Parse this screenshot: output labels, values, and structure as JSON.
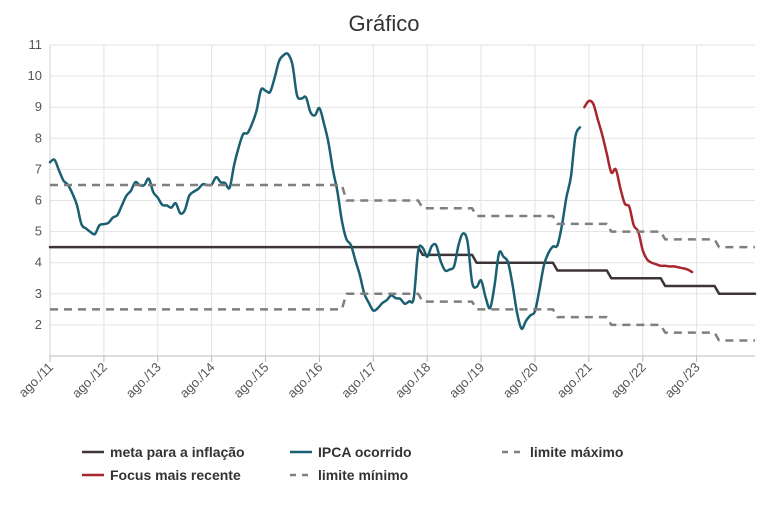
{
  "chart_data": {
    "type": "line",
    "title": "Gráfico",
    "xlabel": "",
    "ylabel": "",
    "x_range": [
      "2011-08",
      "2024-09"
    ],
    "ylim": [
      1,
      11
    ],
    "y_ticks": [
      2,
      3,
      4,
      5,
      6,
      7,
      8,
      9,
      10,
      11
    ],
    "x_tick_labels": [
      "ago./11",
      "ago./12",
      "ago./13",
      "ago./14",
      "ago./15",
      "ago./16",
      "ago./17",
      "ago./18",
      "ago./19",
      "ago./20",
      "ago./21",
      "ago./22",
      "ago./23"
    ],
    "x_tick_dates": [
      "2011-08",
      "2012-08",
      "2013-08",
      "2014-08",
      "2015-08",
      "2016-08",
      "2017-08",
      "2018-08",
      "2019-08",
      "2020-08",
      "2021-08",
      "2022-08",
      "2023-08"
    ],
    "grid": true,
    "legend_position": "bottom",
    "series": [
      {
        "name": "meta para a inflação",
        "color": "#3d3438",
        "style": "solid",
        "step": true,
        "points": [
          [
            "2011-08",
            4.5
          ],
          [
            "2017-01",
            4.5
          ],
          [
            "2018-06",
            4.5
          ],
          [
            "2018-07",
            4.25
          ],
          [
            "2019-06",
            4.25
          ],
          [
            "2019-07",
            4.0
          ],
          [
            "2020-12",
            4.0
          ],
          [
            "2021-01",
            3.75
          ],
          [
            "2021-12",
            3.75
          ],
          [
            "2022-01",
            3.5
          ],
          [
            "2022-12",
            3.5
          ],
          [
            "2023-01",
            3.25
          ],
          [
            "2023-12",
            3.25
          ],
          [
            "2024-01",
            3.0
          ],
          [
            "2024-09",
            3.0
          ]
        ]
      },
      {
        "name": "IPCA ocorrido",
        "color": "#1a5f72",
        "style": "solid",
        "step": false,
        "points": [
          [
            "2011-08",
            7.23
          ],
          [
            "2011-09",
            7.31
          ],
          [
            "2011-10",
            6.97
          ],
          [
            "2011-11",
            6.64
          ],
          [
            "2011-12",
            6.5
          ],
          [
            "2012-01",
            6.22
          ],
          [
            "2012-02",
            5.85
          ],
          [
            "2012-03",
            5.24
          ],
          [
            "2012-04",
            5.1
          ],
          [
            "2012-05",
            4.99
          ],
          [
            "2012-06",
            4.92
          ],
          [
            "2012-07",
            5.2
          ],
          [
            "2012-08",
            5.24
          ],
          [
            "2012-09",
            5.28
          ],
          [
            "2012-10",
            5.45
          ],
          [
            "2012-11",
            5.53
          ],
          [
            "2012-12",
            5.84
          ],
          [
            "2013-01",
            6.15
          ],
          [
            "2013-02",
            6.31
          ],
          [
            "2013-03",
            6.59
          ],
          [
            "2013-04",
            6.49
          ],
          [
            "2013-05",
            6.5
          ],
          [
            "2013-06",
            6.7
          ],
          [
            "2013-07",
            6.27
          ],
          [
            "2013-08",
            6.09
          ],
          [
            "2013-09",
            5.86
          ],
          [
            "2013-10",
            5.84
          ],
          [
            "2013-11",
            5.77
          ],
          [
            "2013-12",
            5.91
          ],
          [
            "2014-01",
            5.59
          ],
          [
            "2014-02",
            5.68
          ],
          [
            "2014-03",
            6.15
          ],
          [
            "2014-04",
            6.28
          ],
          [
            "2014-05",
            6.37
          ],
          [
            "2014-06",
            6.52
          ],
          [
            "2014-07",
            6.5
          ],
          [
            "2014-08",
            6.51
          ],
          [
            "2014-09",
            6.75
          ],
          [
            "2014-10",
            6.59
          ],
          [
            "2014-11",
            6.56
          ],
          [
            "2014-12",
            6.41
          ],
          [
            "2015-01",
            7.14
          ],
          [
            "2015-02",
            7.7
          ],
          [
            "2015-03",
            8.13
          ],
          [
            "2015-04",
            8.17
          ],
          [
            "2015-05",
            8.47
          ],
          [
            "2015-06",
            8.89
          ],
          [
            "2015-07",
            9.56
          ],
          [
            "2015-08",
            9.53
          ],
          [
            "2015-09",
            9.49
          ],
          [
            "2015-10",
            9.93
          ],
          [
            "2015-11",
            10.48
          ],
          [
            "2015-12",
            10.67
          ],
          [
            "2016-01",
            10.71
          ],
          [
            "2016-02",
            10.36
          ],
          [
            "2016-03",
            9.39
          ],
          [
            "2016-04",
            9.28
          ],
          [
            "2016-05",
            9.32
          ],
          [
            "2016-06",
            8.84
          ],
          [
            "2016-07",
            8.74
          ],
          [
            "2016-08",
            8.97
          ],
          [
            "2016-09",
            8.48
          ],
          [
            "2016-10",
            7.87
          ],
          [
            "2016-11",
            6.99
          ],
          [
            "2016-12",
            6.29
          ],
          [
            "2017-01",
            5.35
          ],
          [
            "2017-02",
            4.76
          ],
          [
            "2017-03",
            4.57
          ],
          [
            "2017-04",
            4.08
          ],
          [
            "2017-05",
            3.6
          ],
          [
            "2017-06",
            3.0
          ],
          [
            "2017-07",
            2.71
          ],
          [
            "2017-08",
            2.46
          ],
          [
            "2017-09",
            2.54
          ],
          [
            "2017-10",
            2.7
          ],
          [
            "2017-11",
            2.8
          ],
          [
            "2017-12",
            2.95
          ],
          [
            "2018-01",
            2.86
          ],
          [
            "2018-02",
            2.84
          ],
          [
            "2018-03",
            2.68
          ],
          [
            "2018-04",
            2.76
          ],
          [
            "2018-05",
            2.86
          ],
          [
            "2018-06",
            4.39
          ],
          [
            "2018-07",
            4.48
          ],
          [
            "2018-08",
            4.19
          ],
          [
            "2018-09",
            4.53
          ],
          [
            "2018-10",
            4.56
          ],
          [
            "2018-11",
            4.05
          ],
          [
            "2018-12",
            3.75
          ],
          [
            "2019-01",
            3.78
          ],
          [
            "2019-02",
            3.89
          ],
          [
            "2019-03",
            4.58
          ],
          [
            "2019-04",
            4.94
          ],
          [
            "2019-05",
            4.66
          ],
          [
            "2019-06",
            3.37
          ],
          [
            "2019-07",
            3.22
          ],
          [
            "2019-08",
            3.43
          ],
          [
            "2019-09",
            2.89
          ],
          [
            "2019-10",
            2.54
          ],
          [
            "2019-11",
            3.27
          ],
          [
            "2019-12",
            4.31
          ],
          [
            "2020-01",
            4.19
          ],
          [
            "2020-02",
            4.01
          ],
          [
            "2020-03",
            3.3
          ],
          [
            "2020-04",
            2.4
          ],
          [
            "2020-05",
            1.88
          ],
          [
            "2020-06",
            2.13
          ],
          [
            "2020-07",
            2.31
          ],
          [
            "2020-08",
            2.44
          ],
          [
            "2020-09",
            3.14
          ],
          [
            "2020-10",
            3.92
          ],
          [
            "2020-11",
            4.31
          ],
          [
            "2020-12",
            4.52
          ],
          [
            "2021-01",
            4.56
          ],
          [
            "2021-02",
            5.2
          ],
          [
            "2021-03",
            6.1
          ],
          [
            "2021-04",
            6.76
          ],
          [
            "2021-05",
            8.06
          ],
          [
            "2021-06",
            8.35
          ]
        ]
      },
      {
        "name": "Focus mais recente",
        "color": "#a8262d",
        "style": "solid",
        "step": false,
        "points": [
          [
            "2021-07",
            9.0
          ],
          [
            "2021-08",
            9.2
          ],
          [
            "2021-09",
            9.1
          ],
          [
            "2021-10",
            8.6
          ],
          [
            "2021-11",
            8.1
          ],
          [
            "2021-12",
            7.5
          ],
          [
            "2022-01",
            6.9
          ],
          [
            "2022-02",
            7.0
          ],
          [
            "2022-03",
            6.4
          ],
          [
            "2022-04",
            5.9
          ],
          [
            "2022-05",
            5.8
          ],
          [
            "2022-06",
            5.2
          ],
          [
            "2022-07",
            5.0
          ],
          [
            "2022-08",
            4.4
          ],
          [
            "2022-09",
            4.1
          ],
          [
            "2022-10",
            4.0
          ],
          [
            "2022-11",
            3.95
          ],
          [
            "2022-12",
            3.9
          ],
          [
            "2023-01",
            3.9
          ],
          [
            "2023-02",
            3.88
          ],
          [
            "2023-03",
            3.88
          ],
          [
            "2023-04",
            3.85
          ],
          [
            "2023-05",
            3.82
          ],
          [
            "2023-06",
            3.78
          ],
          [
            "2023-07",
            3.7
          ]
        ]
      },
      {
        "name": "limite máximo",
        "color": "#7f7f7f",
        "style": "dashed",
        "step": true,
        "points": [
          [
            "2011-08",
            6.5
          ],
          [
            "2017-01",
            6.5
          ],
          [
            "2017-02",
            6.0
          ],
          [
            "2018-06",
            6.0
          ],
          [
            "2018-07",
            5.75
          ],
          [
            "2019-06",
            5.75
          ],
          [
            "2019-07",
            5.5
          ],
          [
            "2020-12",
            5.5
          ],
          [
            "2021-01",
            5.25
          ],
          [
            "2021-12",
            5.25
          ],
          [
            "2022-01",
            5.0
          ],
          [
            "2022-12",
            5.0
          ],
          [
            "2023-01",
            4.75
          ],
          [
            "2023-12",
            4.75
          ],
          [
            "2024-01",
            4.5
          ],
          [
            "2024-09",
            4.5
          ]
        ]
      },
      {
        "name": "limite mínimo",
        "color": "#7f7f7f",
        "style": "dashed",
        "step": true,
        "points": [
          [
            "2011-08",
            2.5
          ],
          [
            "2017-01",
            2.5
          ],
          [
            "2017-02",
            3.0
          ],
          [
            "2018-06",
            3.0
          ],
          [
            "2018-07",
            2.75
          ],
          [
            "2019-06",
            2.75
          ],
          [
            "2019-07",
            2.5
          ],
          [
            "2020-12",
            2.5
          ],
          [
            "2021-01",
            2.25
          ],
          [
            "2021-12",
            2.25
          ],
          [
            "2022-01",
            2.0
          ],
          [
            "2022-12",
            2.0
          ],
          [
            "2023-01",
            1.75
          ],
          [
            "2023-12",
            1.75
          ],
          [
            "2024-01",
            1.5
          ],
          [
            "2024-09",
            1.5
          ]
        ]
      }
    ],
    "legend": [
      {
        "label": "meta para a inflação",
        "color": "#3d3438",
        "style": "solid"
      },
      {
        "label": "IPCA ocorrido",
        "color": "#1a5f72",
        "style": "solid"
      },
      {
        "label": "limite máximo",
        "color": "#7f7f7f",
        "style": "dashed"
      },
      {
        "label": "Focus mais recente",
        "color": "#a8262d",
        "style": "solid"
      },
      {
        "label": "limite mínimo",
        "color": "#7f7f7f",
        "style": "dashed"
      }
    ]
  }
}
